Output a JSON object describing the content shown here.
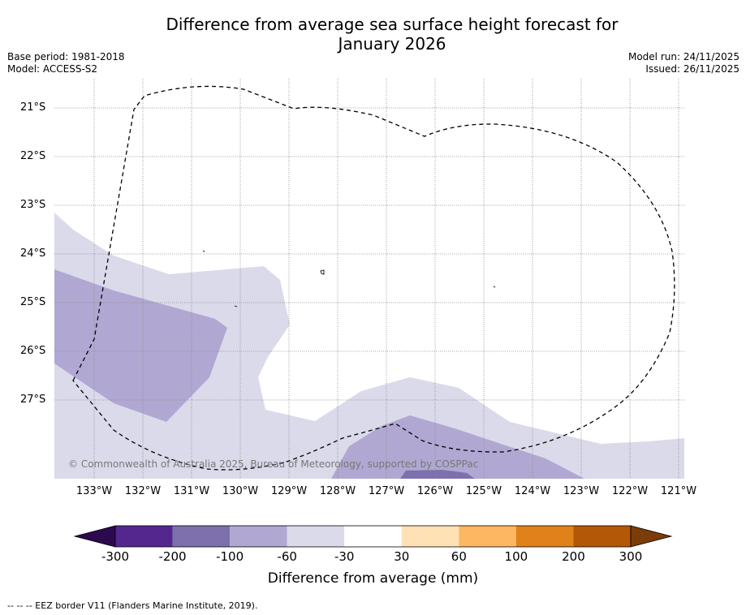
{
  "title_line1": "Difference from average sea surface height forecast for",
  "title_line2": "January 2026",
  "meta_left": {
    "line1": "Base period: 1981-2018",
    "line2": "Model: ACCESS-S2"
  },
  "meta_right": {
    "line1": "Model run: 24/11/2025",
    "line2": "Issued: 26/11/2025"
  },
  "lat_labels": [
    "21°S",
    "22°S",
    "23°S",
    "24°S",
    "25°S",
    "26°S",
    "27°S"
  ],
  "lon_labels": [
    "133°W",
    "132°W",
    "131°W",
    "130°W",
    "129°W",
    "128°W",
    "127°W",
    "126°W",
    "125°W",
    "124°W",
    "123°W",
    "122°W",
    "121°W"
  ],
  "copyright": "© Commonwealth of Australia 2025, Bureau of Meteorology, supported by COSPPac",
  "colorbar": {
    "ticks": [
      "-300",
      "-200",
      "-100",
      "-60",
      "-30",
      "30",
      "60",
      "100",
      "200",
      "300"
    ],
    "colors": [
      "#2d0a50",
      "#54278f",
      "#7e70ad",
      "#b0a8d2",
      "#dadaeb",
      "#ffffff",
      "#fee1b5",
      "#fdb762",
      "#e08119",
      "#b35806",
      "#7a3d09"
    ],
    "label": "Difference from average (mm)"
  },
  "footnote": "--  --  -- EEZ border V11 (Flanders Marine Institute, 2019)."
}
